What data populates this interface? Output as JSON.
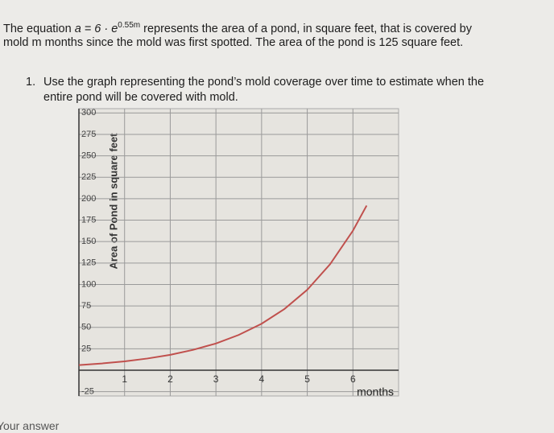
{
  "intro": {
    "before": "The equation",
    "equation": "a = 6 · e",
    "exponent": "0.55m",
    "line1": "represents the area of a pond, in square feet, that is covered by",
    "line2": "mold m months since the mold was first spotted. The area of the pond is 125 square feet."
  },
  "question": {
    "number": "1.",
    "line1": "Use the graph representing the pond’s mold coverage over time to estimate when the",
    "line2": "entire pond will be covered with mold."
  },
  "answer_label": "Your answer",
  "chart_data": {
    "type": "line",
    "y_label": "Area of Pond in square feet",
    "x_label": "months",
    "x": [
      0,
      0.5,
      1,
      1.5,
      2,
      2.5,
      3,
      3.5,
      4,
      4.5,
      5,
      5.5,
      6,
      6.3
    ],
    "series": [
      {
        "name": "a = 6 · e^0.55m",
        "color": "#c0504d",
        "values": [
          6,
          7.9,
          10.4,
          13.7,
          18,
          23.8,
          31.2,
          41.2,
          54.2,
          71.4,
          93.8,
          123.6,
          162.7,
          192
        ]
      }
    ],
    "xlim": [
      0,
      7
    ],
    "xticks": [
      1,
      2,
      3,
      4,
      5,
      6
    ],
    "ylim": [
      -30,
      305
    ],
    "yticks": [
      -25,
      25,
      50,
      75,
      100,
      125,
      150,
      175,
      200,
      225,
      250,
      275,
      300
    ],
    "grid": true
  }
}
